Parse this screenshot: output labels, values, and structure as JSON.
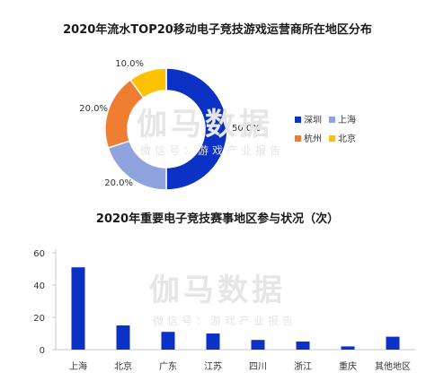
{
  "chart_data": [
    {
      "type": "pie",
      "title": "2020年流水TOP20移动电子竞技游戏运营商所在地区分布",
      "categories": [
        "深圳",
        "上海",
        "杭州",
        "北京"
      ],
      "values": [
        50.0,
        20.0,
        20.0,
        10.0
      ],
      "value_labels": [
        "50.0%",
        "20.0%",
        "20.0%",
        "10.0%"
      ],
      "colors": [
        "#0b32c4",
        "#8fa3de",
        "#ee7d31",
        "#fdc100"
      ],
      "legend_position": "right"
    },
    {
      "type": "bar",
      "title": "2020年重要电子竞技赛事地区参与状况（次）",
      "categories": [
        "上海",
        "北京",
        "广东",
        "江苏",
        "四川",
        "浙江",
        "重庆",
        "其他地区"
      ],
      "values": [
        51,
        15,
        11,
        10,
        6,
        5,
        2,
        8
      ],
      "ylim": [
        0,
        60
      ],
      "yticks": [
        "0",
        "20",
        "40",
        "60"
      ],
      "color": "#0b32c4",
      "grid": false
    }
  ],
  "watermark": {
    "main": "伽马数据",
    "sub": "微信号：游戏产业报告"
  }
}
